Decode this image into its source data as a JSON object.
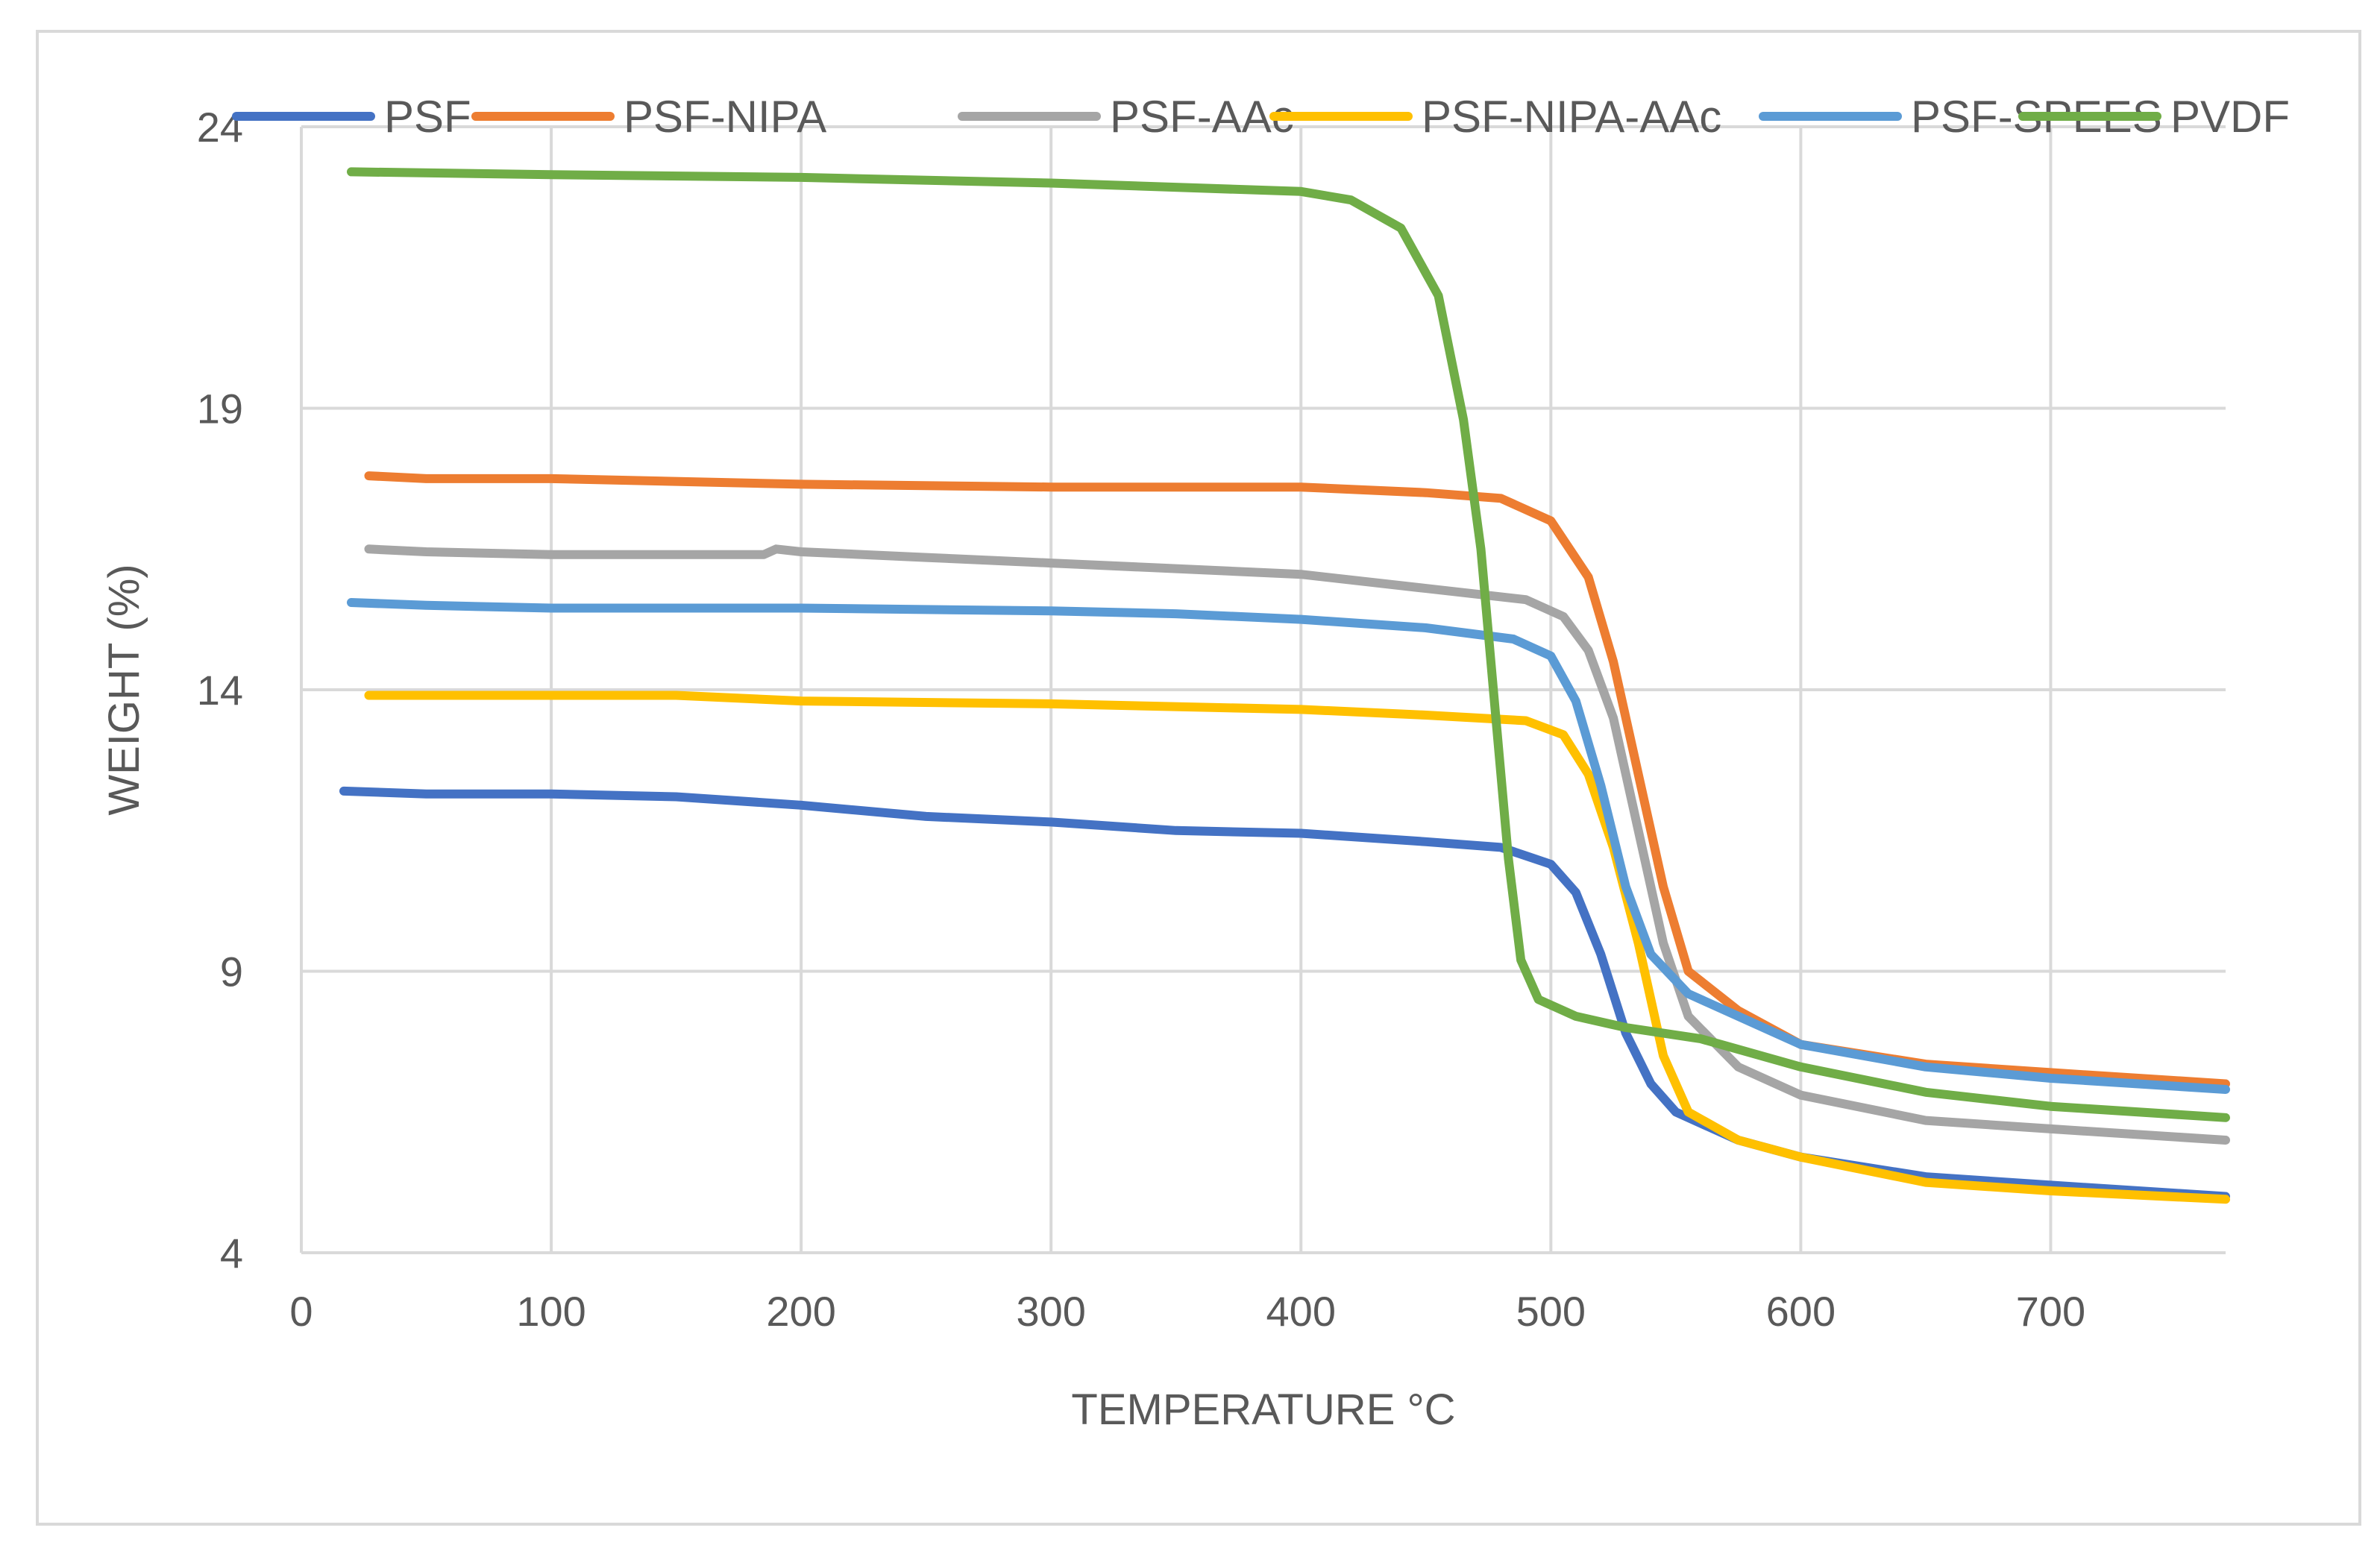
{
  "chart_data": {
    "type": "line",
    "title": "",
    "xlabel": "TEMPERATURE °C",
    "ylabel": "WEIGHT (%)",
    "xlim": [
      0,
      770
    ],
    "ylim": [
      4,
      24
    ],
    "xticks": [
      0,
      100,
      200,
      300,
      400,
      500,
      600,
      700
    ],
    "yticks": [
      4,
      9,
      14,
      19,
      24
    ],
    "grid": true,
    "legend_position": "top",
    "series": [
      {
        "name": "PSF",
        "color": "#4472c4",
        "points": [
          [
            17,
            12.2
          ],
          [
            50,
            12.15
          ],
          [
            100,
            12.15
          ],
          [
            150,
            12.1
          ],
          [
            200,
            11.95
          ],
          [
            250,
            11.75
          ],
          [
            300,
            11.65
          ],
          [
            350,
            11.5
          ],
          [
            400,
            11.45
          ],
          [
            450,
            11.3
          ],
          [
            480,
            11.2
          ],
          [
            500,
            10.9
          ],
          [
            510,
            10.4
          ],
          [
            520,
            9.3
          ],
          [
            530,
            7.9
          ],
          [
            540,
            7.0
          ],
          [
            550,
            6.5
          ],
          [
            575,
            6.0
          ],
          [
            600,
            5.7
          ],
          [
            650,
            5.35
          ],
          [
            700,
            5.2
          ],
          [
            770,
            5.0
          ]
        ]
      },
      {
        "name": "PSF-NIPA",
        "color": "#ed7d31",
        "points": [
          [
            27,
            17.8
          ],
          [
            50,
            17.75
          ],
          [
            100,
            17.75
          ],
          [
            200,
            17.65
          ],
          [
            300,
            17.6
          ],
          [
            400,
            17.6
          ],
          [
            450,
            17.5
          ],
          [
            480,
            17.4
          ],
          [
            500,
            17.0
          ],
          [
            515,
            16.0
          ],
          [
            525,
            14.5
          ],
          [
            535,
            12.5
          ],
          [
            545,
            10.5
          ],
          [
            555,
            9.0
          ],
          [
            575,
            8.3
          ],
          [
            600,
            7.7
          ],
          [
            650,
            7.35
          ],
          [
            700,
            7.2
          ],
          [
            770,
            7.0
          ]
        ]
      },
      {
        "name": "PSF-AAc",
        "color": "#a5a5a5",
        "points": [
          [
            27,
            16.5
          ],
          [
            50,
            16.45
          ],
          [
            100,
            16.4
          ],
          [
            185,
            16.4
          ],
          [
            190,
            16.5
          ],
          [
            200,
            16.45
          ],
          [
            250,
            16.35
          ],
          [
            300,
            16.25
          ],
          [
            400,
            16.05
          ],
          [
            450,
            15.8
          ],
          [
            490,
            15.6
          ],
          [
            505,
            15.3
          ],
          [
            515,
            14.7
          ],
          [
            525,
            13.5
          ],
          [
            535,
            11.5
          ],
          [
            545,
            9.5
          ],
          [
            555,
            8.2
          ],
          [
            575,
            7.3
          ],
          [
            600,
            6.8
          ],
          [
            650,
            6.35
          ],
          [
            700,
            6.2
          ],
          [
            770,
            6.0
          ]
        ]
      },
      {
        "name": "PSF-NIPA-AAc",
        "color": "#ffc000",
        "points": [
          [
            27,
            13.9
          ],
          [
            100,
            13.9
          ],
          [
            150,
            13.9
          ],
          [
            200,
            13.8
          ],
          [
            300,
            13.75
          ],
          [
            400,
            13.65
          ],
          [
            450,
            13.55
          ],
          [
            490,
            13.45
          ],
          [
            505,
            13.2
          ],
          [
            515,
            12.5
          ],
          [
            525,
            11.2
          ],
          [
            535,
            9.5
          ],
          [
            545,
            7.5
          ],
          [
            555,
            6.5
          ],
          [
            575,
            6.0
          ],
          [
            600,
            5.7
          ],
          [
            650,
            5.25
          ],
          [
            700,
            5.1
          ],
          [
            770,
            4.95
          ]
        ]
      },
      {
        "name": "PSF-SPEES",
        "color": "#5b9bd5",
        "points": [
          [
            20,
            15.55
          ],
          [
            50,
            15.5
          ],
          [
            100,
            15.45
          ],
          [
            200,
            15.45
          ],
          [
            300,
            15.4
          ],
          [
            350,
            15.35
          ],
          [
            400,
            15.25
          ],
          [
            450,
            15.1
          ],
          [
            485,
            14.9
          ],
          [
            500,
            14.6
          ],
          [
            510,
            13.8
          ],
          [
            520,
            12.3
          ],
          [
            530,
            10.5
          ],
          [
            540,
            9.3
          ],
          [
            555,
            8.6
          ],
          [
            575,
            8.2
          ],
          [
            600,
            7.7
          ],
          [
            650,
            7.3
          ],
          [
            700,
            7.1
          ],
          [
            770,
            6.9
          ]
        ]
      },
      {
        "name": "PVDF",
        "color": "#70ad47",
        "points": [
          [
            20,
            23.2
          ],
          [
            100,
            23.15
          ],
          [
            200,
            23.1
          ],
          [
            300,
            23.0
          ],
          [
            400,
            22.85
          ],
          [
            420,
            22.7
          ],
          [
            440,
            22.2
          ],
          [
            455,
            21.0
          ],
          [
            465,
            18.8
          ],
          [
            472,
            16.5
          ],
          [
            478,
            13.5
          ],
          [
            483,
            11.0
          ],
          [
            488,
            9.2
          ],
          [
            495,
            8.5
          ],
          [
            510,
            8.2
          ],
          [
            530,
            8.0
          ],
          [
            560,
            7.8
          ],
          [
            600,
            7.3
          ],
          [
            650,
            6.85
          ],
          [
            700,
            6.6
          ],
          [
            770,
            6.4
          ]
        ]
      }
    ]
  }
}
